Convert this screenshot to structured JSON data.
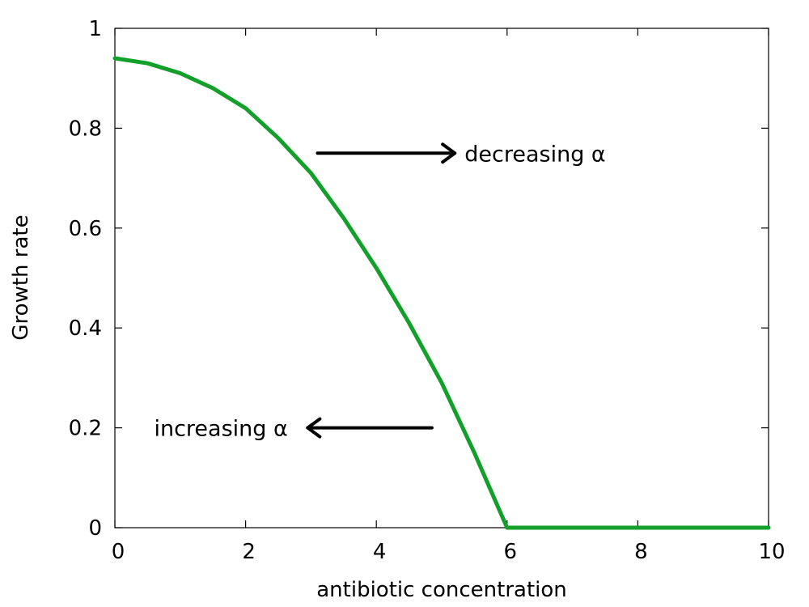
{
  "chart_data": {
    "type": "line",
    "xlabel": "antibiotic concentration",
    "ylabel": "Growth rate",
    "xlim": [
      0,
      10
    ],
    "ylim": [
      0,
      1
    ],
    "x_ticks": [
      0,
      2,
      4,
      6,
      8,
      10
    ],
    "y_ticks": [
      0,
      0.2,
      0.4,
      0.6,
      0.8,
      1
    ],
    "x_tick_labels": [
      "0",
      "2",
      "4",
      "6",
      "8",
      "10"
    ],
    "y_tick_labels": [
      "0",
      "0.2",
      "0.4",
      "0.6",
      "0.8",
      "1"
    ],
    "grid": false,
    "series": [
      {
        "color": "#12a02a",
        "x": [
          0,
          0.5,
          1,
          1.5,
          2,
          2.5,
          3,
          3.5,
          4,
          4.5,
          5,
          5.5,
          5.9,
          6,
          6.5,
          7,
          7.5,
          8,
          8.5,
          9,
          9.5,
          10
        ],
        "y": [
          0.94,
          0.93,
          0.91,
          0.88,
          0.84,
          0.78,
          0.71,
          0.62,
          0.52,
          0.41,
          0.29,
          0.15,
          0.03,
          0,
          0,
          0,
          0,
          0,
          0,
          0,
          0,
          0
        ]
      }
    ],
    "annotations": [
      {
        "text": "decreasing α",
        "x": 5.35,
        "y": 0.75,
        "arrow_from": [
          3.1,
          0.75
        ],
        "arrow_to": [
          5.2,
          0.75
        ]
      },
      {
        "text": "increasing α",
        "x": 0.6,
        "y": 0.2,
        "arrow_from": [
          4.85,
          0.2
        ],
        "arrow_to": [
          2.95,
          0.2
        ]
      }
    ]
  }
}
